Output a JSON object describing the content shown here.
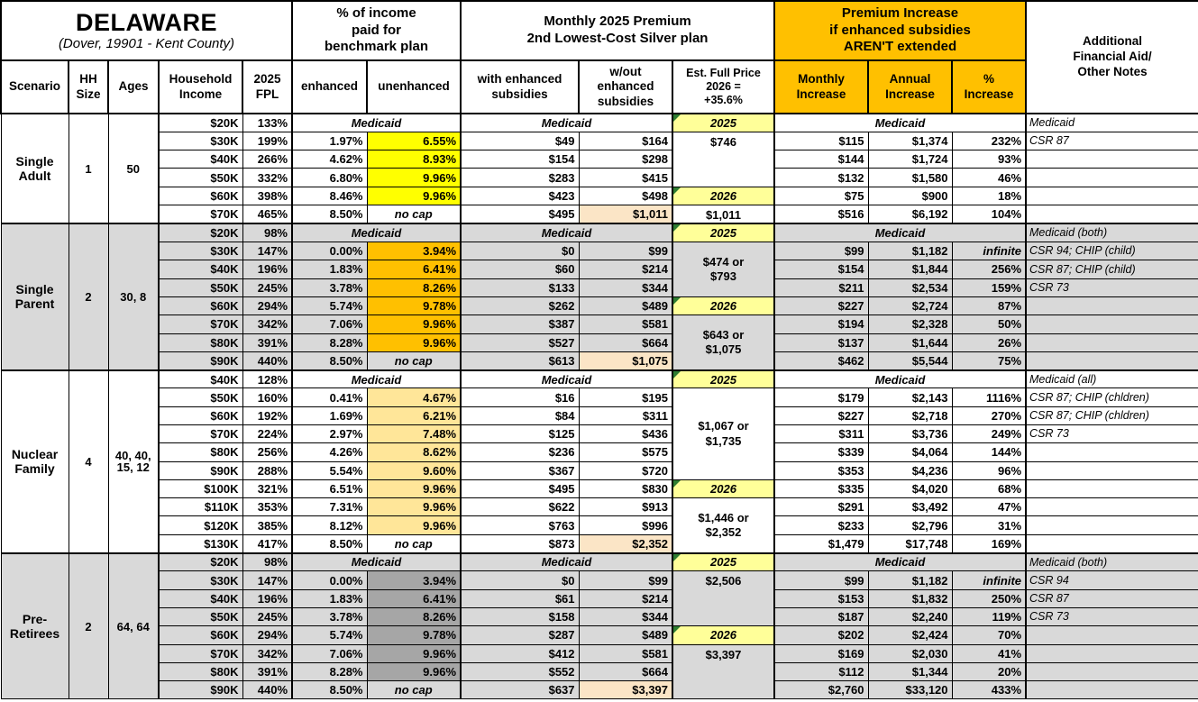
{
  "header": {
    "title": "DELAWARE",
    "subtitle": "(Dover, 19901 - Kent County)",
    "benchmark_group": "% of income\npaid for\nbenchmark plan",
    "premium_group": "Monthly 2025 Premium\n2nd Lowest-Cost Silver plan",
    "increase_group": "Premium Increase\nif enhanced subsidies\nAREN'T extended",
    "notes_group": "Additional\nFinancial Aid/\nOther Notes",
    "cols": {
      "scenario": "Scenario",
      "hh": "HH\nSize",
      "ages": "Ages",
      "income": "Household\nIncome",
      "fpl": "2025\nFPL",
      "enhanced": "enhanced",
      "unenhanced": "unenhanced",
      "with_sub": "with enhanced\nsubsidies",
      "wo_sub": "w/out\nenhanced\nsubsidies",
      "full_price": "Est. Full Price\n2026 =\n+35.6%",
      "monthly": "Monthly\nIncrease",
      "annual": "Annual\nIncrease",
      "pct": "%\nIncrease"
    }
  },
  "colors": {
    "orange_header": "#FFC000",
    "year_yellow": "#FFFF99",
    "tan_highlight": "#FBE5C6",
    "triangle_green": "#2E7D32",
    "white": "#FFFFFF",
    "group_gray": "#D9D9D9"
  },
  "medicaid_label": "Medicaid",
  "groups": [
    {
      "scenario": "Single\nAdult",
      "hh": "1",
      "ages": "50",
      "bg": "#FFFFFF",
      "hl": "#FFFF00",
      "rows": [
        {
          "income": "$20K",
          "fpl": "133%",
          "medicaid": true,
          "notes": "Medicaid",
          "full": {
            "type": "year",
            "label": "2025"
          }
        },
        {
          "income": "$30K",
          "fpl": "199%",
          "enh": "1.97%",
          "unenh": "6.55%",
          "hl": true,
          "w": "$49",
          "wo": "$164",
          "mo": "$115",
          "an": "$1,374",
          "pct": "232%",
          "notes": "CSR 87",
          "full": {
            "type": "val",
            "label": "$746",
            "span": 3,
            "align": "top"
          }
        },
        {
          "income": "$40K",
          "fpl": "266%",
          "enh": "4.62%",
          "unenh": "8.93%",
          "hl": true,
          "w": "$154",
          "wo": "$298",
          "mo": "$144",
          "an": "$1,724",
          "pct": "93%"
        },
        {
          "income": "$50K",
          "fpl": "332%",
          "enh": "6.80%",
          "unenh": "9.96%",
          "hl": true,
          "w": "$283",
          "wo": "$415",
          "mo": "$132",
          "an": "$1,580",
          "pct": "46%"
        },
        {
          "income": "$60K",
          "fpl": "398%",
          "enh": "8.46%",
          "unenh": "9.96%",
          "hl": true,
          "w": "$423",
          "wo": "$498",
          "mo": "$75",
          "an": "$900",
          "pct": "18%",
          "full": {
            "type": "year",
            "label": "2026"
          }
        },
        {
          "income": "$70K",
          "fpl": "465%",
          "enh": "8.50%",
          "unenh": "no cap",
          "nocap": true,
          "w": "$495",
          "wo": "$1,011",
          "wohl": true,
          "mo": "$516",
          "an": "$6,192",
          "pct": "104%",
          "full": {
            "type": "val",
            "label": "$1,011",
            "span": 1,
            "align": "top"
          }
        }
      ]
    },
    {
      "scenario": "Single\nParent",
      "hh": "2",
      "ages": "30, 8",
      "bg": "#D9D9D9",
      "hl": "#FFC000",
      "rows": [
        {
          "income": "$20K",
          "fpl": "98%",
          "medicaid": true,
          "notes": "Medicaid (both)",
          "full": {
            "type": "year",
            "label": "2025"
          }
        },
        {
          "income": "$30K",
          "fpl": "147%",
          "enh": "0.00%",
          "unenh": "3.94%",
          "hl": true,
          "w": "$0",
          "wo": "$99",
          "mo": "$99",
          "an": "$1,182",
          "pct": "infinite",
          "pct_italic": true,
          "notes": "CSR 94; CHIP (child)",
          "full": {
            "type": "val",
            "label": "$474 or\n$793",
            "span": 3,
            "align": "mid"
          }
        },
        {
          "income": "$40K",
          "fpl": "196%",
          "enh": "1.83%",
          "unenh": "6.41%",
          "hl": true,
          "w": "$60",
          "wo": "$214",
          "mo": "$154",
          "an": "$1,844",
          "pct": "256%",
          "notes": "CSR 87; CHIP (child)"
        },
        {
          "income": "$50K",
          "fpl": "245%",
          "enh": "3.78%",
          "unenh": "8.26%",
          "hl": true,
          "w": "$133",
          "wo": "$344",
          "mo": "$211",
          "an": "$2,534",
          "pct": "159%",
          "notes": "CSR 73"
        },
        {
          "income": "$60K",
          "fpl": "294%",
          "enh": "5.74%",
          "unenh": "9.78%",
          "hl": true,
          "w": "$262",
          "wo": "$489",
          "mo": "$227",
          "an": "$2,724",
          "pct": "87%",
          "full": {
            "type": "year",
            "label": "2026"
          }
        },
        {
          "income": "$70K",
          "fpl": "342%",
          "enh": "7.06%",
          "unenh": "9.96%",
          "hl": true,
          "w": "$387",
          "wo": "$581",
          "mo": "$194",
          "an": "$2,328",
          "pct": "50%",
          "full": {
            "type": "val",
            "label": "$643 or\n$1,075",
            "span": 3,
            "align": "mid"
          }
        },
        {
          "income": "$80K",
          "fpl": "391%",
          "enh": "8.28%",
          "unenh": "9.96%",
          "hl": true,
          "w": "$527",
          "wo": "$664",
          "mo": "$137",
          "an": "$1,644",
          "pct": "26%"
        },
        {
          "income": "$90K",
          "fpl": "440%",
          "enh": "8.50%",
          "unenh": "no cap",
          "nocap": true,
          "w": "$613",
          "wo": "$1,075",
          "wohl": true,
          "mo": "$462",
          "an": "$5,544",
          "pct": "75%"
        }
      ]
    },
    {
      "scenario": "Nuclear\nFamily",
      "hh": "4",
      "ages": "40, 40,\n15, 12",
      "bg": "#FFFFFF",
      "hl": "#FFE699",
      "rows": [
        {
          "income": "$40K",
          "fpl": "128%",
          "medicaid": true,
          "notes": "Medicaid (all)",
          "full": {
            "type": "year",
            "label": "2025"
          }
        },
        {
          "income": "$50K",
          "fpl": "160%",
          "enh": "0.41%",
          "unenh": "4.67%",
          "hl": true,
          "w": "$16",
          "wo": "$195",
          "mo": "$179",
          "an": "$2,143",
          "pct": "1116%",
          "notes": "CSR 87; CHIP (chldren)",
          "full": {
            "type": "val",
            "label": "$1,067 or\n$1,735",
            "span": 5,
            "align": "mid"
          }
        },
        {
          "income": "$60K",
          "fpl": "192%",
          "enh": "1.69%",
          "unenh": "6.21%",
          "hl": true,
          "w": "$84",
          "wo": "$311",
          "mo": "$227",
          "an": "$2,718",
          "pct": "270%",
          "notes": "CSR 87; CHIP (chldren)"
        },
        {
          "income": "$70K",
          "fpl": "224%",
          "enh": "2.97%",
          "unenh": "7.48%",
          "hl": true,
          "w": "$125",
          "wo": "$436",
          "mo": "$311",
          "an": "$3,736",
          "pct": "249%",
          "notes": "CSR 73"
        },
        {
          "income": "$80K",
          "fpl": "256%",
          "enh": "4.26%",
          "unenh": "8.62%",
          "hl": true,
          "w": "$236",
          "wo": "$575",
          "mo": "$339",
          "an": "$4,064",
          "pct": "144%"
        },
        {
          "income": "$90K",
          "fpl": "288%",
          "enh": "5.54%",
          "unenh": "9.60%",
          "hl": true,
          "w": "$367",
          "wo": "$720",
          "mo": "$353",
          "an": "$4,236",
          "pct": "96%"
        },
        {
          "income": "$100K",
          "fpl": "321%",
          "enh": "6.51%",
          "unenh": "9.96%",
          "hl": true,
          "w": "$495",
          "wo": "$830",
          "mo": "$335",
          "an": "$4,020",
          "pct": "68%",
          "full": {
            "type": "year",
            "label": "2026"
          }
        },
        {
          "income": "$110K",
          "fpl": "353%",
          "enh": "7.31%",
          "unenh": "9.96%",
          "hl": true,
          "w": "$622",
          "wo": "$913",
          "mo": "$291",
          "an": "$3,492",
          "pct": "47%",
          "full": {
            "type": "val",
            "label": "$1,446 or\n$2,352",
            "span": 3,
            "align": "mid"
          }
        },
        {
          "income": "$120K",
          "fpl": "385%",
          "enh": "8.12%",
          "unenh": "9.96%",
          "hl": true,
          "w": "$763",
          "wo": "$996",
          "mo": "$233",
          "an": "$2,796",
          "pct": "31%"
        },
        {
          "income": "$130K",
          "fpl": "417%",
          "enh": "8.50%",
          "unenh": "no cap",
          "nocap": true,
          "w": "$873",
          "wo": "$2,352",
          "wohl": true,
          "mo": "$1,479",
          "an": "$17,748",
          "pct": "169%"
        }
      ]
    },
    {
      "scenario": "Pre-\nRetirees",
      "hh": "2",
      "ages": "64, 64",
      "bg": "#D9D9D9",
      "hl": "#A6A6A6",
      "rows": [
        {
          "income": "$20K",
          "fpl": "98%",
          "medicaid": true,
          "notes": "Medicaid (both)",
          "full": {
            "type": "year",
            "label": "2025"
          }
        },
        {
          "income": "$30K",
          "fpl": "147%",
          "enh": "0.00%",
          "unenh": "3.94%",
          "hl": true,
          "w": "$0",
          "wo": "$99",
          "mo": "$99",
          "an": "$1,182",
          "pct": "infinite",
          "pct_italic": true,
          "notes": "CSR 94",
          "full": {
            "type": "val",
            "label": "$2,506",
            "span": 3,
            "align": "top"
          }
        },
        {
          "income": "$40K",
          "fpl": "196%",
          "enh": "1.83%",
          "unenh": "6.41%",
          "hl": true,
          "w": "$61",
          "wo": "$214",
          "mo": "$153",
          "an": "$1,832",
          "pct": "250%",
          "notes": "CSR 87"
        },
        {
          "income": "$50K",
          "fpl": "245%",
          "enh": "3.78%",
          "unenh": "8.26%",
          "hl": true,
          "w": "$158",
          "wo": "$344",
          "mo": "$187",
          "an": "$2,240",
          "pct": "119%",
          "notes": "CSR 73"
        },
        {
          "income": "$60K",
          "fpl": "294%",
          "enh": "5.74%",
          "unenh": "9.78%",
          "hl": true,
          "w": "$287",
          "wo": "$489",
          "mo": "$202",
          "an": "$2,424",
          "pct": "70%",
          "full": {
            "type": "year",
            "label": "2026"
          }
        },
        {
          "income": "$70K",
          "fpl": "342%",
          "enh": "7.06%",
          "unenh": "9.96%",
          "hl": true,
          "w": "$412",
          "wo": "$581",
          "mo": "$169",
          "an": "$2,030",
          "pct": "41%",
          "full": {
            "type": "val",
            "label": "$3,397",
            "span": 3,
            "align": "top"
          }
        },
        {
          "income": "$80K",
          "fpl": "391%",
          "enh": "8.28%",
          "unenh": "9.96%",
          "hl": true,
          "w": "$552",
          "wo": "$664",
          "mo": "$112",
          "an": "$1,344",
          "pct": "20%"
        },
        {
          "income": "$90K",
          "fpl": "440%",
          "enh": "8.50%",
          "unenh": "no cap",
          "nocap": true,
          "w": "$637",
          "wo": "$3,397",
          "wohl": true,
          "mo": "$2,760",
          "an": "$33,120",
          "pct": "433%"
        }
      ]
    }
  ]
}
